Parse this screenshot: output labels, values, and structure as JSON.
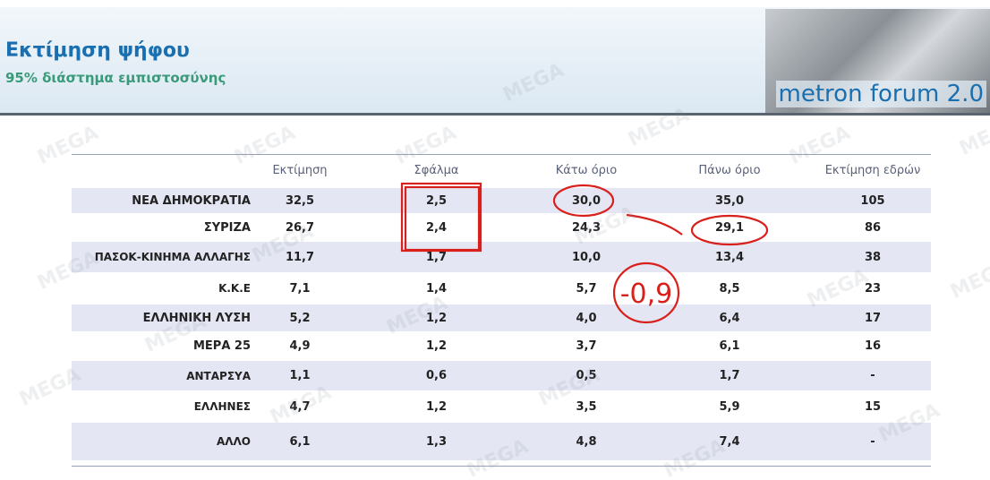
{
  "header": {
    "title": "Εκτίμηση ψήφου",
    "subtitle": "95% διάστημα εμπιστοσύνης",
    "logo": "metron forum 2.0"
  },
  "watermark": "MEGA",
  "table": {
    "columns": [
      "Εκτίμηση",
      "Σφάλμα",
      "Κάτω όριο",
      "Πάνω όριο",
      "Εκτίμηση εδρών"
    ],
    "rows": [
      [
        "ΝΕΑ ΔΗΜΟΚΡΑΤΙΑ",
        "32,5",
        "2,5",
        "30,0",
        "35,0",
        "105"
      ],
      [
        "ΣΥΡΙΖΑ",
        "26,7",
        "2,4",
        "24,3",
        "29,1",
        "86"
      ],
      [
        "ΠΑΣΟΚ-ΚΙΝΗΜΑ ΑΛΛΑΓΗΣ",
        "11,7",
        "1,7",
        "10,0",
        "13,4",
        "38"
      ],
      [
        "Κ.Κ.Ε",
        "7,1",
        "1,4",
        "5,7",
        "8,5",
        "23"
      ],
      [
        "ΕΛΛΗΝΙΚΗ ΛΥΣΗ",
        "5,2",
        "1,2",
        "4,0",
        "6,4",
        "17"
      ],
      [
        "ΜΕΡΑ 25",
        "4,9",
        "1,2",
        "3,7",
        "6,1",
        "16"
      ],
      [
        "ΑΝΤΑΡΣΥΑ",
        "1,1",
        "0,6",
        "0,5",
        "1,7",
        "-"
      ],
      [
        "ΕΛΛΗΝΕΣ",
        "4,7",
        "1,2",
        "3,5",
        "5,9",
        "15"
      ],
      [
        "ΑΛΛΟ",
        "6,1",
        "1,3",
        "4,8",
        "7,4",
        "-"
      ]
    ]
  },
  "annotation": "-0,9"
}
